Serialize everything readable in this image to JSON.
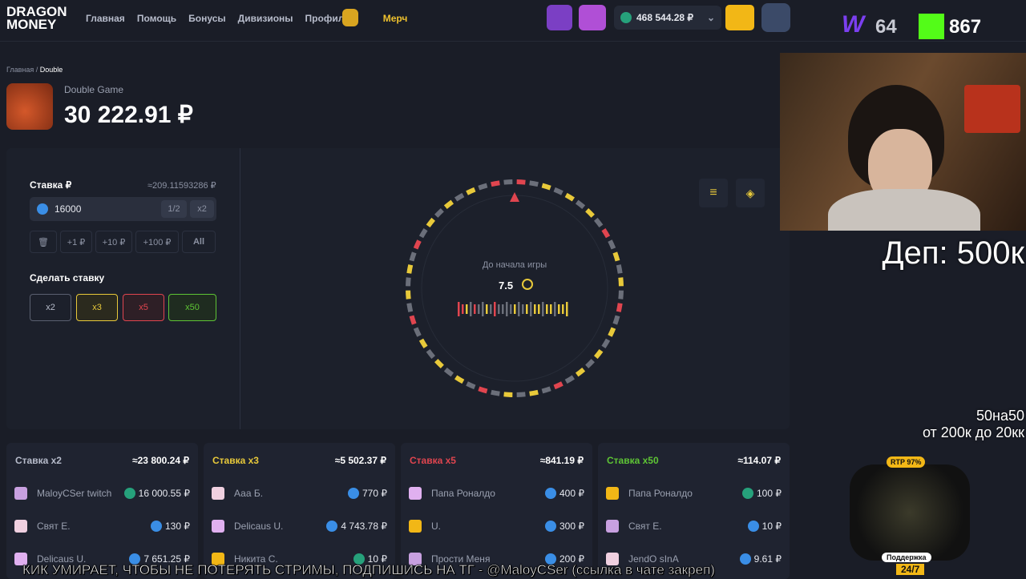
{
  "nav": {
    "logo": [
      "DRAGON",
      "MONEY"
    ],
    "links": [
      "Главная",
      "Помощь",
      "Бонусы",
      "Дивизионы",
      "Профиль",
      "Мерч"
    ],
    "balance": "468 544.28 ₽"
  },
  "overlay": {
    "w_count": "64",
    "k_count": "867",
    "dep": "Деп: 500к",
    "promo": [
      "50на50",
      "от 200к до 20кк"
    ],
    "rtp": "RTP 97%",
    "support": "Поддержка",
    "hours": "24/7",
    "banner": "КИК УМИРАЕТ, ЧТОБЫ НЕ ПОТЕРЯТЬ СТРИМЫ, ПОДПИШИСЬ НА ТГ - @MaloyCSer (ссылка в чате закреп)"
  },
  "breadcrumb": [
    "Главная",
    "Double"
  ],
  "game": {
    "name": "Double Game",
    "bank": "30 222.91 ₽"
  },
  "bet": {
    "label": "Ставка ₽",
    "approx": "≈209.11593286 ₽",
    "input": "16000",
    "half": "1/2",
    "double": "x2",
    "quick": [
      "+1 ₽",
      "+10 ₽",
      "+100 ₽",
      "All"
    ],
    "make_bet": "Сделать ставку",
    "options": [
      "x2",
      "x3",
      "x5",
      "x50"
    ]
  },
  "wheel": {
    "caption": "До начала игры",
    "timer": "7.5"
  },
  "tables": [
    {
      "title": "Ставка x2",
      "total": "≈23 800.24 ₽",
      "rows": [
        {
          "name": "MaloyCSer twitch",
          "amount": "16 000.55 ₽"
        },
        {
          "name": "Свят Е.",
          "amount": "130 ₽"
        },
        {
          "name": "Delicaus U.",
          "amount": "7 651.25 ₽"
        }
      ]
    },
    {
      "title": "Ставка x3",
      "total": "≈5 502.37 ₽",
      "rows": [
        {
          "name": "Ааа Б.",
          "amount": "770 ₽"
        },
        {
          "name": "Delicaus U.",
          "amount": "4 743.78 ₽"
        },
        {
          "name": "Никита С.",
          "amount": "10 ₽"
        }
      ]
    },
    {
      "title": "Ставка x5",
      "total": "≈841.19 ₽",
      "rows": [
        {
          "name": "Папа Роналдо",
          "amount": "400 ₽"
        },
        {
          "name": "U.",
          "amount": "300 ₽"
        },
        {
          "name": "Прости Меня",
          "amount": "200 ₽"
        }
      ]
    },
    {
      "title": "Ставка x50",
      "total": "≈114.07 ₽",
      "rows": [
        {
          "name": "Папа Роналдо",
          "amount": "100 ₽"
        },
        {
          "name": "Свят Е.",
          "amount": "10 ₽"
        },
        {
          "name": "JendO sInA",
          "amount": "9.61 ₽"
        }
      ]
    }
  ]
}
